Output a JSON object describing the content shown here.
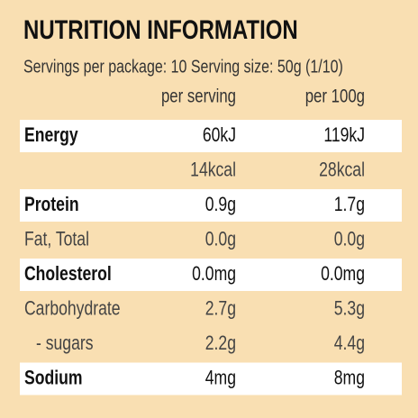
{
  "title": "NUTRITION INFORMATION",
  "servings": "Servings per package: 10 Serving size: 50g (1/10)",
  "table": {
    "header": [
      "per serving",
      "per 100g"
    ],
    "rows": [
      {
        "label": "Energy",
        "per_serving": [
          "60kJ",
          "14kcal"
        ],
        "per_100g": [
          "119kJ",
          "28kcal"
        ]
      },
      {
        "label": "Protein",
        "per_serving": [
          "0.9g"
        ],
        "per_100g": [
          "1.7g"
        ]
      },
      {
        "label": "Fat, Total",
        "per_serving": [
          "0.0g"
        ],
        "per_100g": [
          "0.0g"
        ]
      },
      {
        "label": "Cholesterol",
        "per_serving": [
          "0.0mg"
        ],
        "per_100g": [
          "0.0mg"
        ]
      },
      {
        "label": "Carbohydrate",
        "per_serving": [
          "2.7g"
        ],
        "per_100g": [
          "5.3g"
        ]
      },
      {
        "label": "- sugars",
        "per_serving": [
          "2.2g"
        ],
        "per_100g": [
          "4.4g"
        ]
      },
      {
        "label": "Sodium",
        "per_serving": [
          "4mg"
        ],
        "per_100g": [
          "8mg"
        ]
      }
    ]
  }
}
